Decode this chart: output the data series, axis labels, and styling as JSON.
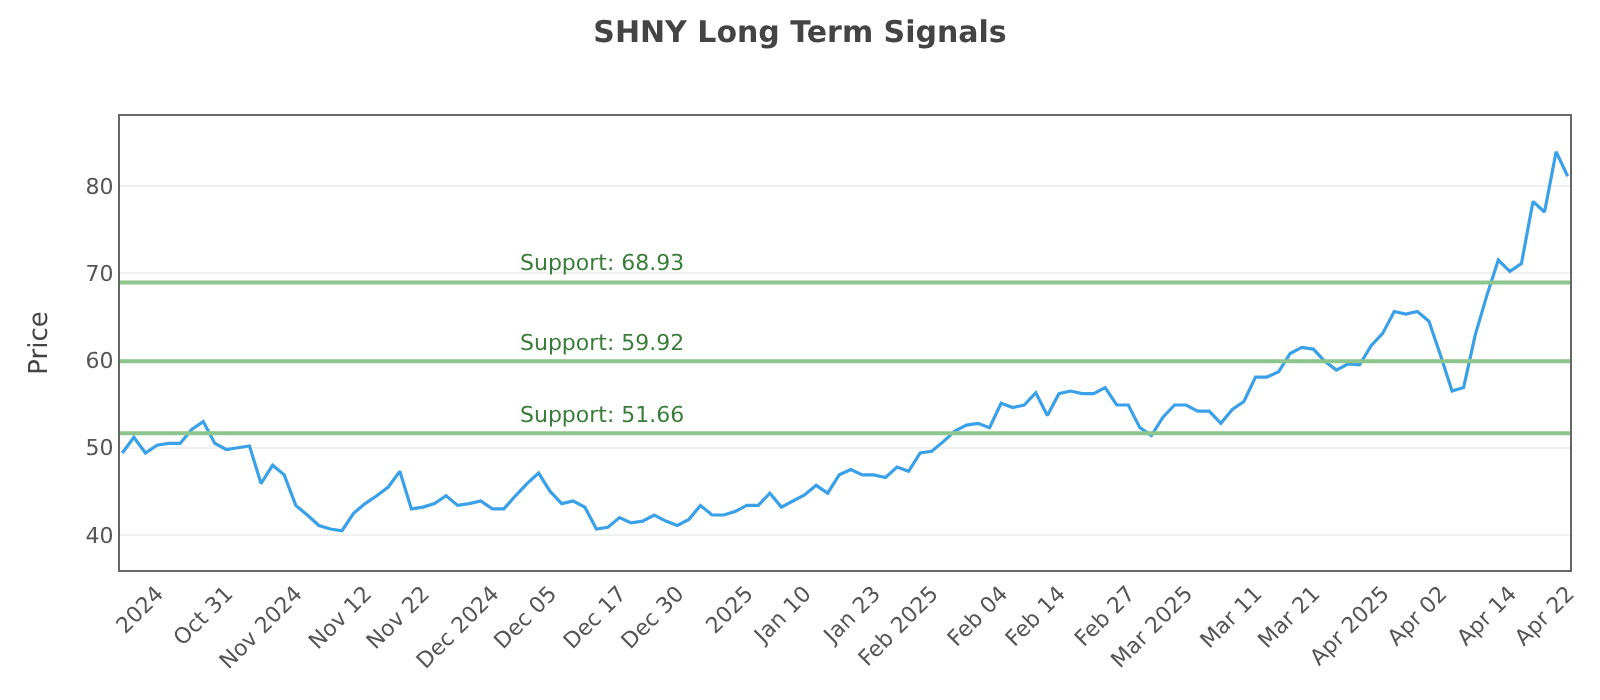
{
  "chart_data": {
    "type": "line",
    "title": "SHNY Long Term Signals",
    "ylabel": "Price",
    "categories": [
      null,
      null,
      null,
      "2024",
      null,
      null,
      null,
      null,
      null,
      "Oct 31",
      null,
      null,
      null,
      null,
      null,
      "Nov 2024",
      null,
      null,
      null,
      null,
      null,
      "Nov 12",
      null,
      null,
      null,
      null,
      "Nov 22",
      null,
      null,
      null,
      null,
      null,
      "Dec 2024",
      null,
      null,
      null,
      null,
      "Dec 05",
      null,
      null,
      null,
      null,
      null,
      "Dec 17",
      null,
      null,
      null,
      null,
      "Dec 30",
      null,
      null,
      null,
      null,
      null,
      "2025",
      null,
      null,
      null,
      null,
      "Jan 10",
      null,
      null,
      null,
      null,
      null,
      "Jan 23",
      null,
      null,
      null,
      null,
      "Feb 2025",
      null,
      null,
      null,
      null,
      null,
      "Feb 04",
      null,
      null,
      null,
      null,
      "Feb 14",
      null,
      null,
      null,
      null,
      null,
      "Feb 27",
      null,
      null,
      null,
      null,
      "Mar 2025",
      null,
      null,
      null,
      null,
      null,
      "Mar 11",
      null,
      null,
      null,
      null,
      "Mar 21",
      null,
      null,
      null,
      null,
      null,
      "Apr 2025",
      null,
      null,
      null,
      null,
      "Apr 02",
      null,
      null,
      null,
      null,
      null,
      "Apr 14",
      null,
      null,
      null,
      null,
      "Apr 22"
    ],
    "series": [
      {
        "color": "#3aa0e8",
        "values": [
          49.4,
          51.2,
          49.4,
          50.3,
          50.5,
          50.5,
          52.1,
          53.0,
          50.5,
          49.8,
          50.0,
          50.2,
          45.9,
          48.0,
          46.9,
          43.4,
          42.3,
          41.1,
          40.7,
          40.5,
          42.5,
          43.6,
          44.5,
          45.5,
          47.3,
          43.0,
          43.2,
          43.6,
          44.5,
          43.4,
          43.6,
          43.9,
          43.0,
          43.0,
          44.5,
          45.9,
          47.1,
          45.0,
          43.6,
          43.9,
          43.2,
          40.7,
          40.9,
          42.0,
          41.4,
          41.6,
          42.3,
          41.6,
          41.1,
          41.8,
          43.4,
          42.3,
          42.3,
          42.7,
          43.4,
          43.4,
          44.8,
          43.2,
          43.9,
          44.6,
          45.7,
          44.8,
          46.9,
          47.5,
          46.9,
          46.9,
          46.6,
          47.8,
          47.3,
          49.4,
          49.6,
          50.7,
          51.9,
          52.6,
          52.8,
          52.3,
          55.1,
          54.6,
          54.9,
          56.3,
          53.7,
          56.2,
          56.5,
          56.2,
          56.2,
          56.9,
          54.9,
          54.9,
          52.3,
          51.4,
          53.5,
          54.9,
          54.9,
          54.2,
          54.2,
          52.8,
          54.4,
          55.3,
          58.1,
          58.1,
          58.7,
          60.8,
          61.5,
          61.3,
          59.9,
          58.9,
          59.6,
          59.5,
          61.7,
          63.1,
          65.6,
          65.3,
          65.6,
          64.5,
          60.6,
          56.5,
          56.9,
          62.9,
          67.4,
          71.5,
          70.2,
          71.1,
          78.2,
          77.0,
          83.9,
          81.1
        ]
      }
    ],
    "ylim": [
      36,
      88
    ],
    "yticks": [
      40,
      50,
      60,
      70,
      80
    ],
    "grid": "y",
    "marker": "none",
    "line_style": "solid",
    "ref_lines": [
      {
        "axis": "y",
        "value": 68.93,
        "label": "Support: 68.93",
        "color": "#8cc68c"
      },
      {
        "axis": "y",
        "value": 59.92,
        "label": "Support: 59.92",
        "color": "#8cc68c"
      },
      {
        "axis": "y",
        "value": 51.66,
        "label": "Support: 51.66",
        "color": "#8cc68c"
      }
    ]
  }
}
